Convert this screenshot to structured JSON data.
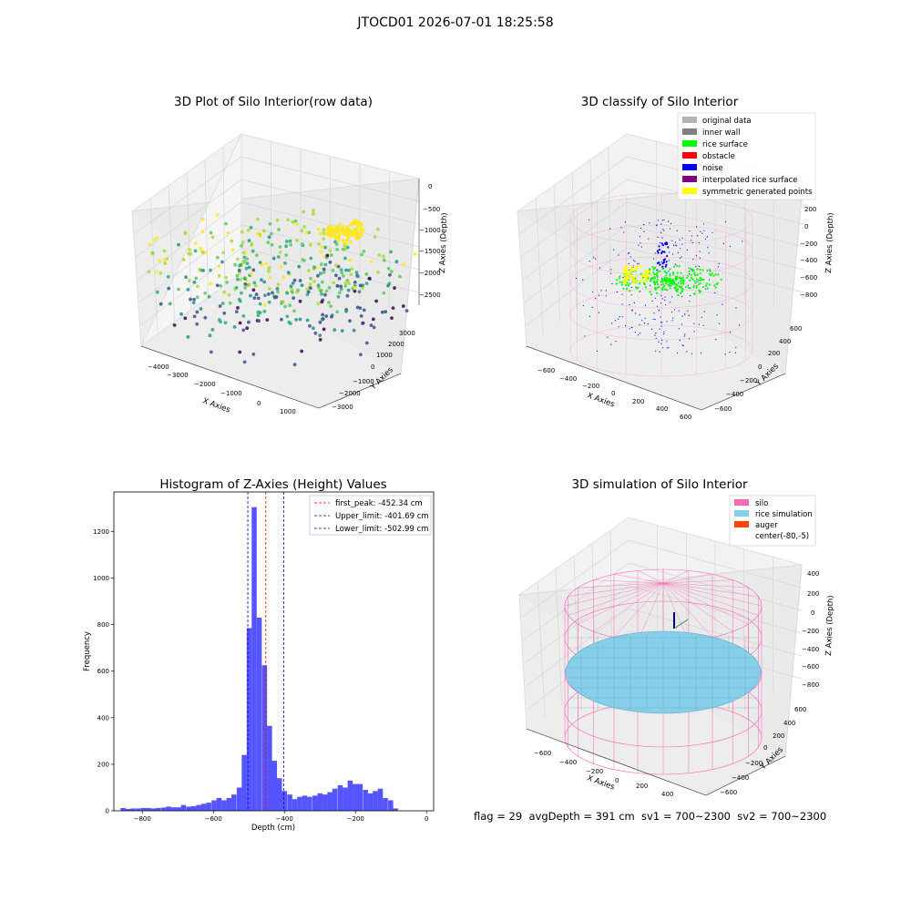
{
  "figure": {
    "suptitle": "JTOCD01 2026-07-01 18:25:58",
    "footer": "flag = 29  avgDepth = 391 cm  sv1 = 700~2300  sv2 = 700~2300"
  },
  "chart_data": [
    {
      "type": "scatter",
      "projection": "3d",
      "title": "3D Plot of Silo Interior(row data)",
      "xlabel": "X Axies",
      "ylabel": "Y Axies",
      "zlabel": "Z Axies (Depth)",
      "x_ticks": [
        "−4000",
        "−3000",
        "−2000",
        "−1000",
        "0",
        "1000"
      ],
      "y_ticks": [
        "−3000",
        "−2000",
        "−1000",
        "0",
        "1000",
        "2000",
        "3000"
      ],
      "z_ticks": [
        "0",
        "−500",
        "−1000",
        "−1500",
        "−2000",
        "−2500"
      ],
      "xlim": [
        -4300,
        1300
      ],
      "ylim": [
        -3300,
        3300
      ],
      "zlim": [
        -2900,
        100
      ],
      "colormap": "viridis",
      "grid": true
    },
    {
      "type": "scatter",
      "projection": "3d",
      "title": "3D classify of Silo Interior",
      "xlabel": "X Axies",
      "ylabel": "Y Axies",
      "zlabel": "Z Axies (Depth)",
      "x_ticks": [
        "−600",
        "−400",
        "−200",
        "0",
        "200",
        "400",
        "600"
      ],
      "y_ticks": [
        "−600",
        "−400",
        "−200",
        "0",
        "200",
        "400",
        "600"
      ],
      "z_ticks": [
        "200",
        "0",
        "−200",
        "−400",
        "−600",
        "−800"
      ],
      "z_ticks_partial": "00",
      "grid": true,
      "legend_position": "top-right",
      "legend": [
        {
          "label": "original data",
          "color": "#b3b3b3"
        },
        {
          "label": "inner wall",
          "color": "#808080"
        },
        {
          "label": "rice surface",
          "color": "#00ff00"
        },
        {
          "label": "obstacle",
          "color": "#ff0000"
        },
        {
          "label": "noise",
          "color": "#0000ff"
        },
        {
          "label": "interpolated rice surface",
          "color": "#800080"
        },
        {
          "label": "symmetric generated points",
          "color": "#ffff00"
        }
      ],
      "wall_color": "#ff99cc"
    },
    {
      "type": "bar",
      "title": "Histogram of Z-Axies (Height) Values",
      "xlabel": "Depth (cm)",
      "ylabel": "Frequency",
      "x_ticks": [
        -800,
        -600,
        -400,
        -200,
        0
      ],
      "y_ticks": [
        0,
        200,
        400,
        600,
        800,
        1000,
        1200
      ],
      "xlim": [
        -880,
        20
      ],
      "ylim": [
        0,
        1370
      ],
      "bar_color": "#5555ff",
      "bin_width": 14.2,
      "bins": [
        {
          "x": -854,
          "value": 12
        },
        {
          "x": -840,
          "value": 8
        },
        {
          "x": -826,
          "value": 10
        },
        {
          "x": -811,
          "value": 10
        },
        {
          "x": -797,
          "value": 12
        },
        {
          "x": -783,
          "value": 12
        },
        {
          "x": -769,
          "value": 10
        },
        {
          "x": -755,
          "value": 12
        },
        {
          "x": -740,
          "value": 14
        },
        {
          "x": -726,
          "value": 18
        },
        {
          "x": -712,
          "value": 15
        },
        {
          "x": -698,
          "value": 15
        },
        {
          "x": -684,
          "value": 25
        },
        {
          "x": -669,
          "value": 18
        },
        {
          "x": -655,
          "value": 20
        },
        {
          "x": -641,
          "value": 25
        },
        {
          "x": -627,
          "value": 30
        },
        {
          "x": -613,
          "value": 35
        },
        {
          "x": -598,
          "value": 45
        },
        {
          "x": -584,
          "value": 55
        },
        {
          "x": -570,
          "value": 45
        },
        {
          "x": -556,
          "value": 55
        },
        {
          "x": -542,
          "value": 70
        },
        {
          "x": -527,
          "value": 100
        },
        {
          "x": -513,
          "value": 240
        },
        {
          "x": -499,
          "value": 785
        },
        {
          "x": -485,
          "value": 1305
        },
        {
          "x": -471,
          "value": 830
        },
        {
          "x": -456,
          "value": 625
        },
        {
          "x": -442,
          "value": 365
        },
        {
          "x": -428,
          "value": 215
        },
        {
          "x": -414,
          "value": 140
        },
        {
          "x": -400,
          "value": 85
        },
        {
          "x": -385,
          "value": 70
        },
        {
          "x": -371,
          "value": 50
        },
        {
          "x": -357,
          "value": 60
        },
        {
          "x": -343,
          "value": 65
        },
        {
          "x": -329,
          "value": 60
        },
        {
          "x": -314,
          "value": 65
        },
        {
          "x": -300,
          "value": 75
        },
        {
          "x": -286,
          "value": 70
        },
        {
          "x": -272,
          "value": 80
        },
        {
          "x": -258,
          "value": 95
        },
        {
          "x": -243,
          "value": 110
        },
        {
          "x": -229,
          "value": 100
        },
        {
          "x": -215,
          "value": 130
        },
        {
          "x": -201,
          "value": 115
        },
        {
          "x": -187,
          "value": 115
        },
        {
          "x": -172,
          "value": 90
        },
        {
          "x": -158,
          "value": 75
        },
        {
          "x": -144,
          "value": 85
        },
        {
          "x": -130,
          "value": 95
        },
        {
          "x": -116,
          "value": 55
        },
        {
          "x": -101,
          "value": 45
        },
        {
          "x": -87,
          "value": 10
        }
      ],
      "vlines": [
        {
          "label": "first_peak: -452.34 cm",
          "x": -452.34,
          "color": "#ff0000"
        },
        {
          "label": "Upper_limit: -401.69 cm",
          "x": -401.69,
          "color": "#0000ff"
        },
        {
          "label": "Lower_limit: -502.99 cm",
          "x": -502.99,
          "color": "#0000ff"
        }
      ],
      "legend_position": "top-right",
      "grid": false
    },
    {
      "type": "scatter",
      "projection": "3d",
      "title": "3D simulation of Silo Interior",
      "xlabel": "X Axies",
      "ylabel": "Y Axies",
      "zlabel": "Z Axies (Depth)",
      "x_ticks": [
        "−600",
        "−400",
        "−200",
        "0",
        "200",
        "400"
      ],
      "y_ticks": [
        "−600",
        "−400",
        "−200",
        "0",
        "200",
        "400",
        "600"
      ],
      "z_ticks": [
        "400",
        "200",
        "0",
        "−200",
        "−400",
        "−600",
        "−800"
      ],
      "grid": true,
      "legend_position": "top-right",
      "legend": [
        {
          "label": "silo",
          "color": "#ff69b4"
        },
        {
          "label": "rice simulation",
          "color": "#87ceeb"
        },
        {
          "label": "auger",
          "color": "#ff4500"
        },
        {
          "label": "center(-80,-5)",
          "color": "#ffffff"
        }
      ]
    }
  ]
}
